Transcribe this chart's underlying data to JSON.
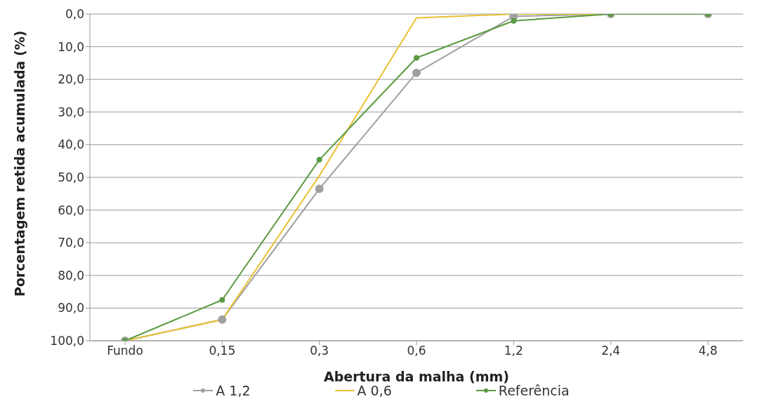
{
  "chart_data": {
    "type": "line",
    "xlabel": "Abertura da malha (mm)",
    "ylabel": "Porcentagem retida acumulada (%)",
    "categories": [
      "Fundo",
      "0,15",
      "0,3",
      "0,6",
      "1,2",
      "2,4",
      "4,8"
    ],
    "series": [
      {
        "name": "A 1,2",
        "color": "#a0a0a0",
        "marker": "circle",
        "values": [
          100,
          93.5,
          53.5,
          18,
          0.7,
          0,
          0
        ]
      },
      {
        "name": "A 0,6",
        "color": "#e8c030",
        "marker": "none",
        "values": [
          100,
          93.5,
          49.5,
          1.2,
          0,
          0,
          0
        ]
      },
      {
        "name": "Referência",
        "color": "#5a9a40",
        "marker": "circle",
        "values": [
          100,
          87.5,
          44.6,
          13.4,
          2.1,
          0,
          0
        ]
      }
    ],
    "ylim": [
      100,
      0
    ],
    "yticks": [
      {
        "value": 0,
        "label": "0,0"
      },
      {
        "value": 10,
        "label": "10,0"
      },
      {
        "value": 20,
        "label": "20,0"
      },
      {
        "value": 30,
        "label": "30,0"
      },
      {
        "value": 40,
        "label": "40,0"
      },
      {
        "value": 50,
        "label": "50,0"
      },
      {
        "value": 60,
        "label": "60,0"
      },
      {
        "value": 70,
        "label": "70,0"
      },
      {
        "value": 80,
        "label": "80,0"
      },
      {
        "value": 90,
        "label": "90,0"
      },
      {
        "value": 100,
        "label": "100,0"
      }
    ],
    "grid": "y",
    "legend": "bottom",
    "line_style": "solid"
  }
}
